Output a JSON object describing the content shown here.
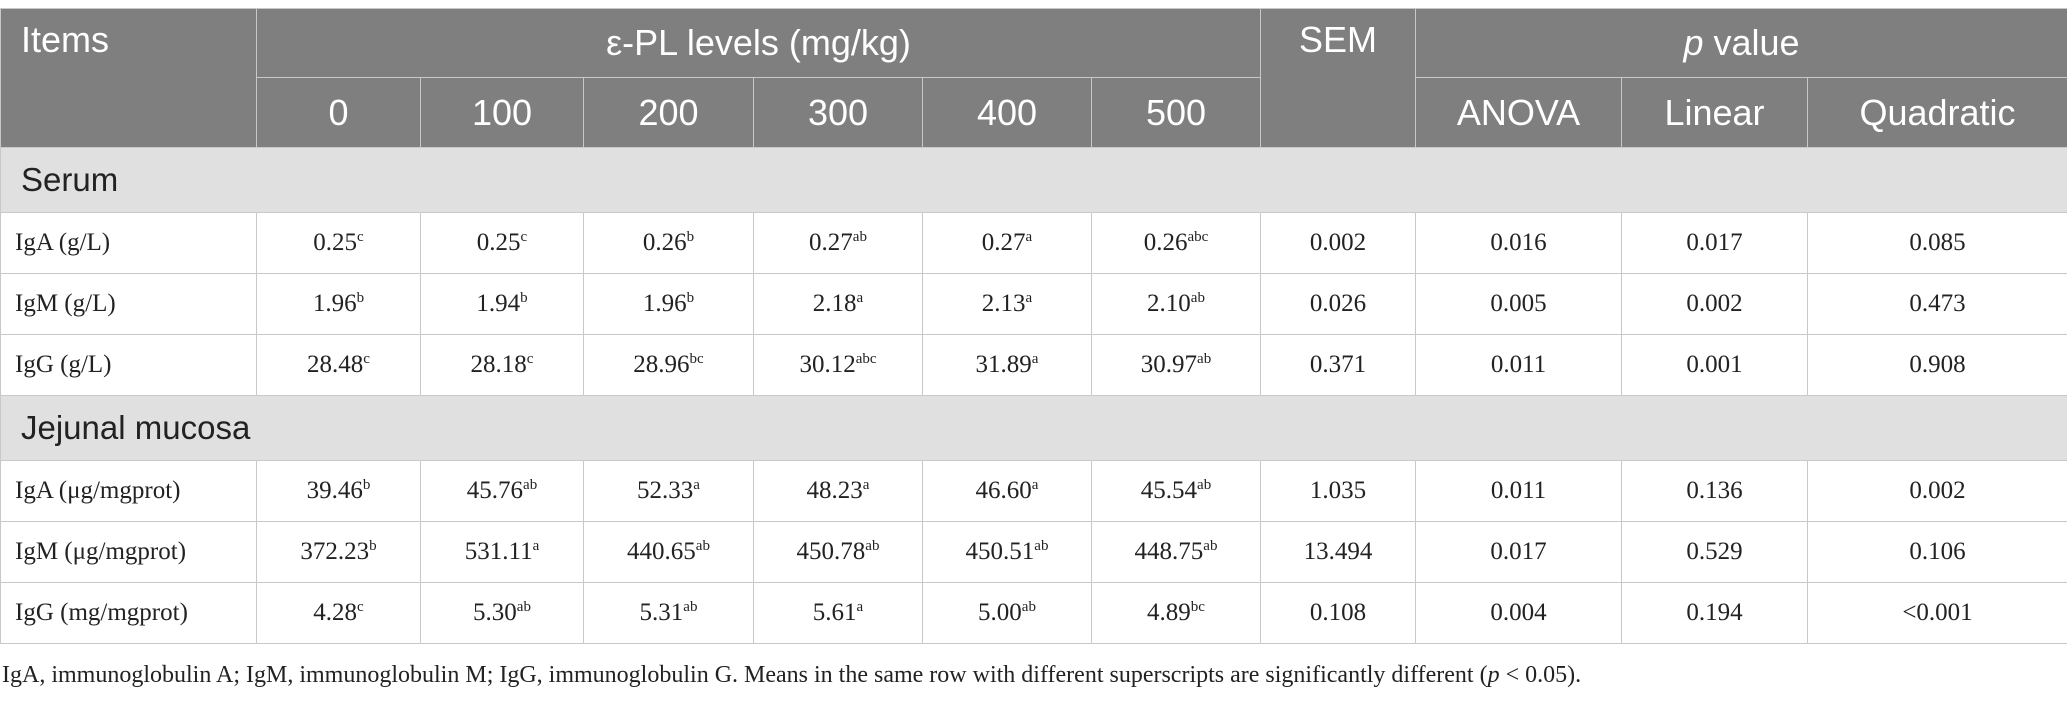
{
  "header": {
    "items": "Items",
    "levels_group": "ε-PL levels (mg/kg)",
    "levels": [
      "0",
      "100",
      "200",
      "300",
      "400",
      "500"
    ],
    "sem": "SEM",
    "pvalue_italic": "p",
    "pvalue_rest": " value",
    "pvalues": [
      "ANOVA",
      "Linear",
      "Quadratic"
    ]
  },
  "sections": [
    {
      "title": "Serum",
      "rows": [
        {
          "item": "IgA (g/L)",
          "cells": [
            {
              "v": "0.25",
              "s": "c"
            },
            {
              "v": "0.25",
              "s": "c"
            },
            {
              "v": "0.26",
              "s": "b"
            },
            {
              "v": "0.27",
              "s": "ab"
            },
            {
              "v": "0.27",
              "s": "a"
            },
            {
              "v": "0.26",
              "s": "abc"
            }
          ],
          "sem": "0.002",
          "anova": "0.016",
          "linear": "0.017",
          "quadratic": "0.085"
        },
        {
          "item": "IgM (g/L)",
          "cells": [
            {
              "v": "1.96",
              "s": "b"
            },
            {
              "v": "1.94",
              "s": "b"
            },
            {
              "v": "1.96",
              "s": "b"
            },
            {
              "v": "2.18",
              "s": "a"
            },
            {
              "v": "2.13",
              "s": "a"
            },
            {
              "v": "2.10",
              "s": "ab"
            }
          ],
          "sem": "0.026",
          "anova": "0.005",
          "linear": "0.002",
          "quadratic": "0.473"
        },
        {
          "item": "IgG (g/L)",
          "cells": [
            {
              "v": "28.48",
              "s": "c"
            },
            {
              "v": "28.18",
              "s": "c"
            },
            {
              "v": "28.96",
              "s": "bc"
            },
            {
              "v": "30.12",
              "s": "abc"
            },
            {
              "v": "31.89",
              "s": "a"
            },
            {
              "v": "30.97",
              "s": "ab"
            }
          ],
          "sem": "0.371",
          "anova": "0.011",
          "linear": "0.001",
          "quadratic": "0.908"
        }
      ]
    },
    {
      "title": "Jejunal mucosa",
      "rows": [
        {
          "item": "IgA (μg/mgprot)",
          "cells": [
            {
              "v": "39.46",
              "s": "b"
            },
            {
              "v": "45.76",
              "s": "ab"
            },
            {
              "v": "52.33",
              "s": "a"
            },
            {
              "v": "48.23",
              "s": "a"
            },
            {
              "v": "46.60",
              "s": "a"
            },
            {
              "v": "45.54",
              "s": "ab"
            }
          ],
          "sem": "1.035",
          "anova": "0.011",
          "linear": "0.136",
          "quadratic": "0.002"
        },
        {
          "item": "IgM (μg/mgprot)",
          "cells": [
            {
              "v": "372.23",
              "s": "b"
            },
            {
              "v": "531.11",
              "s": "a"
            },
            {
              "v": "440.65",
              "s": "ab"
            },
            {
              "v": "450.78",
              "s": "ab"
            },
            {
              "v": "450.51",
              "s": "ab"
            },
            {
              "v": "448.75",
              "s": "ab"
            }
          ],
          "sem": "13.494",
          "anova": "0.017",
          "linear": "0.529",
          "quadratic": "0.106"
        },
        {
          "item": "IgG (mg/mgprot)",
          "cells": [
            {
              "v": "4.28",
              "s": "c"
            },
            {
              "v": "5.30",
              "s": "ab"
            },
            {
              "v": "5.31",
              "s": "ab"
            },
            {
              "v": "5.61",
              "s": "a"
            },
            {
              "v": "5.00",
              "s": "ab"
            },
            {
              "v": "4.89",
              "s": "bc"
            }
          ],
          "sem": "0.108",
          "anova": "0.004",
          "linear": "0.194",
          "quadratic": "<0.001"
        }
      ]
    }
  ],
  "footnote": {
    "before": "IgA, immunoglobulin A; IgM, immunoglobulin M; IgG, immunoglobulin G. Means in the same row with different superscripts are significantly different (",
    "italic": "p",
    "after": " < 0.05)."
  }
}
